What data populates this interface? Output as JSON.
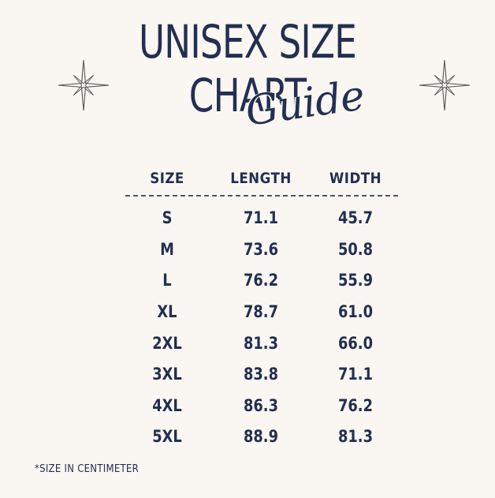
{
  "title": {
    "line1": "UNISEX SIZE",
    "line2": "CHART",
    "script": "Guide"
  },
  "table": {
    "headers": [
      "SIZE",
      "LENGTH",
      "WIDTH"
    ],
    "rows": [
      [
        "S",
        "71.1",
        "45.7"
      ],
      [
        "M",
        "73.6",
        "50.8"
      ],
      [
        "L",
        "76.2",
        "55.9"
      ],
      [
        "XL",
        "78.7",
        "61.0"
      ],
      [
        "2XL",
        "81.3",
        "66.0"
      ],
      [
        "3XL",
        "83.8",
        "71.1"
      ],
      [
        "4XL",
        "86.3",
        "76.2"
      ],
      [
        "5XL",
        "88.9",
        "81.3"
      ]
    ]
  },
  "footnote": "*SIZE IN CENTIMETER",
  "colors": {
    "background": "#faf7f2",
    "ink": "#232f52",
    "sparkle": "#555555"
  },
  "icons": [
    "sparkle-star-icon",
    "sparkle-star-icon"
  ]
}
